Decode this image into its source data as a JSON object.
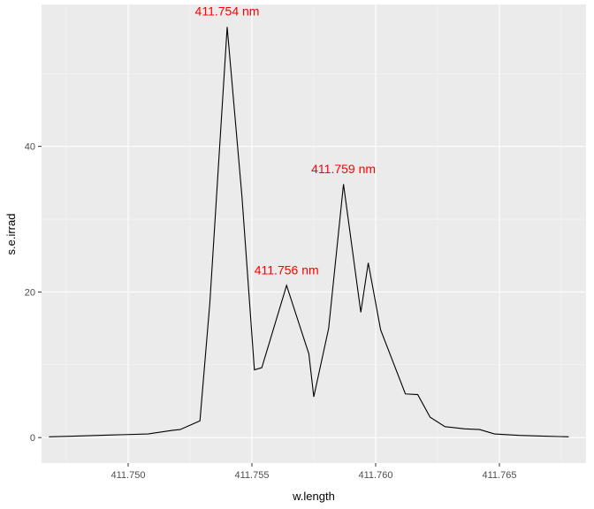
{
  "chart_data": {
    "type": "line",
    "title": "",
    "xlabel": "w.length",
    "ylabel": "s.e.irrad",
    "xlim": [
      411.7465,
      411.7685
    ],
    "ylim": [
      -3.5,
      59.5
    ],
    "x_ticks": [
      411.75,
      411.755,
      411.76,
      411.765
    ],
    "x_tick_labels": [
      "411.750",
      "411.755",
      "411.760",
      "411.765"
    ],
    "y_ticks": [
      0,
      20,
      40
    ],
    "y_tick_labels": [
      "0",
      "20",
      "40"
    ],
    "grid": true,
    "background": "#EBEBEB",
    "grid_major_color": "#FFFFFF",
    "line_color": "#000000",
    "annotation_color": "#FF0000",
    "series": [
      {
        "x": [
          411.7468,
          411.7478,
          411.7488,
          411.7498,
          411.7508,
          411.7518,
          411.7521,
          411.7529,
          411.7533,
          411.754,
          411.7546,
          411.7551,
          411.7554,
          411.7564,
          411.7573,
          411.7575,
          411.7581,
          411.7587,
          411.7594,
          411.7597,
          411.7602,
          411.7612,
          411.7617,
          411.7622,
          411.7628,
          411.7636,
          411.7642,
          411.7648,
          411.7658,
          411.7668,
          411.7678
        ],
        "y": [
          0.1,
          0.2,
          0.3,
          0.4,
          0.5,
          1.0,
          1.1,
          2.3,
          18.5,
          56.4,
          33.0,
          9.3,
          9.6,
          20.9,
          11.5,
          5.6,
          15.0,
          34.8,
          17.2,
          24.0,
          14.8,
          6.0,
          5.9,
          2.8,
          1.5,
          1.2,
          1.1,
          0.5,
          0.3,
          0.2,
          0.1
        ]
      }
    ],
    "annotations": [
      {
        "text": "411.754 nm",
        "x": 411.754,
        "y": 58.0
      },
      {
        "text": "411.756 nm",
        "x": 411.7564,
        "y": 22.4
      },
      {
        "text": "411.759 nm",
        "x": 411.7587,
        "y": 36.3
      }
    ]
  }
}
